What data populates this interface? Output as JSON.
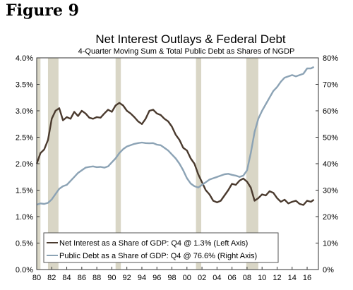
{
  "figure_label": "Figure 9",
  "chart_data": {
    "type": "line",
    "title": "Net Interest Outlays & Federal Debt",
    "subtitle": "4-Quarter Moving Sum & Total Public Debt as Shares of NGDP",
    "x_range": [
      1980,
      2017.5
    ],
    "x_tick_values": [
      1980,
      1982,
      1984,
      1986,
      1988,
      1990,
      1992,
      1994,
      1996,
      1998,
      2000,
      2002,
      2004,
      2006,
      2008,
      2010,
      2012,
      2014,
      2016
    ],
    "x_tick_labels": [
      "80",
      "82",
      "84",
      "86",
      "88",
      "90",
      "92",
      "94",
      "96",
      "98",
      "00",
      "02",
      "04",
      "06",
      "08",
      "10",
      "12",
      "14",
      "16"
    ],
    "y_left": {
      "range": [
        0,
        4
      ],
      "ticks": [
        0,
        0.5,
        1,
        1.5,
        2,
        2.5,
        3,
        3.5,
        4
      ],
      "tick_labels": [
        "0.0%",
        "0.5%",
        "1.0%",
        "1.5%",
        "2.0%",
        "2.5%",
        "3.0%",
        "3.5%",
        "4.0%"
      ]
    },
    "y_right": {
      "range": [
        0,
        80
      ],
      "ticks": [
        0,
        10,
        20,
        30,
        40,
        50,
        60,
        70,
        80
      ],
      "tick_labels": [
        "0%",
        "10%",
        "20%",
        "30%",
        "40%",
        "50%",
        "60%",
        "70%",
        "80%"
      ]
    },
    "recessions": [
      [
        1980.0,
        1980.5
      ],
      [
        1981.5,
        1982.9
      ],
      [
        1990.5,
        1991.2
      ],
      [
        2001.2,
        2001.9
      ],
      [
        2007.9,
        2009.5
      ]
    ],
    "grid": false,
    "legend_placement": "bottom-left",
    "series": [
      {
        "name": "Net Interest as a Share of GDP: Q4 @ 1.3% (Left Axis)",
        "axis": "left",
        "color": "#4a3a2e",
        "x": [
          1980.0,
          1980.5,
          1981.0,
          1981.5,
          1982.0,
          1982.5,
          1983.0,
          1983.5,
          1984.0,
          1984.5,
          1985.0,
          1985.5,
          1986.0,
          1986.5,
          1987.0,
          1987.5,
          1988.0,
          1988.5,
          1989.0,
          1989.5,
          1990.0,
          1990.5,
          1991.0,
          1991.5,
          1992.0,
          1992.5,
          1993.0,
          1993.5,
          1994.0,
          1994.5,
          1995.0,
          1995.5,
          1996.0,
          1996.5,
          1997.0,
          1997.5,
          1998.0,
          1998.5,
          1999.0,
          1999.5,
          2000.0,
          2000.5,
          2001.0,
          2001.5,
          2002.0,
          2002.5,
          2003.0,
          2003.5,
          2004.0,
          2004.5,
          2005.0,
          2005.5,
          2006.0,
          2006.5,
          2007.0,
          2007.5,
          2008.0,
          2008.5,
          2009.0,
          2009.5,
          2010.0,
          2010.5,
          2011.0,
          2011.5,
          2012.0,
          2012.5,
          2013.0,
          2013.5,
          2014.0,
          2014.5,
          2015.0,
          2015.5,
          2016.0,
          2016.5,
          2016.9
        ],
        "values": [
          2.0,
          2.2,
          2.27,
          2.45,
          2.85,
          3.0,
          3.05,
          2.82,
          2.88,
          2.85,
          2.98,
          2.9,
          3.0,
          2.95,
          2.87,
          2.85,
          2.88,
          2.87,
          2.95,
          3.02,
          2.98,
          3.1,
          3.15,
          3.1,
          3.0,
          2.95,
          2.88,
          2.8,
          2.75,
          2.85,
          3.0,
          3.02,
          2.95,
          2.92,
          2.85,
          2.8,
          2.7,
          2.55,
          2.45,
          2.3,
          2.25,
          2.1,
          2.0,
          1.8,
          1.65,
          1.5,
          1.42,
          1.3,
          1.27,
          1.3,
          1.4,
          1.5,
          1.62,
          1.6,
          1.68,
          1.72,
          1.66,
          1.55,
          1.3,
          1.35,
          1.42,
          1.4,
          1.48,
          1.45,
          1.35,
          1.28,
          1.32,
          1.25,
          1.28,
          1.3,
          1.24,
          1.22,
          1.3,
          1.28,
          1.32
        ]
      },
      {
        "name": "Public Debt as a Share of GDP: Q4 @ 76.6% (Right Axis)",
        "axis": "right",
        "color": "#8ca3b5",
        "x": [
          1980.0,
          1980.5,
          1981.0,
          1981.5,
          1982.0,
          1982.5,
          1983.0,
          1983.5,
          1984.0,
          1984.5,
          1985.0,
          1985.5,
          1986.0,
          1986.5,
          1987.0,
          1987.5,
          1988.0,
          1988.5,
          1989.0,
          1989.5,
          1990.0,
          1990.5,
          1991.0,
          1991.5,
          1992.0,
          1992.5,
          1993.0,
          1993.5,
          1994.0,
          1994.5,
          1995.0,
          1995.5,
          1996.0,
          1996.5,
          1997.0,
          1997.5,
          1998.0,
          1998.5,
          1999.0,
          1999.5,
          2000.0,
          2000.5,
          2001.0,
          2001.5,
          2002.0,
          2002.5,
          2003.0,
          2003.5,
          2004.0,
          2004.5,
          2005.0,
          2005.5,
          2006.0,
          2006.5,
          2007.0,
          2007.5,
          2008.0,
          2008.5,
          2009.0,
          2009.5,
          2010.0,
          2010.5,
          2011.0,
          2011.5,
          2012.0,
          2012.5,
          2013.0,
          2013.5,
          2014.0,
          2014.5,
          2015.0,
          2015.5,
          2016.0,
          2016.5,
          2016.9
        ],
        "values": [
          24.5,
          25.0,
          24.8,
          25.2,
          26.5,
          28.5,
          30.5,
          31.5,
          32.0,
          33.5,
          35.0,
          36.5,
          37.5,
          38.5,
          38.8,
          39.0,
          38.7,
          38.8,
          38.5,
          39.0,
          40.5,
          42.0,
          44.0,
          45.5,
          46.5,
          47.0,
          47.5,
          47.8,
          48.0,
          47.8,
          47.7,
          47.8,
          47.2,
          47.0,
          46.0,
          45.0,
          43.5,
          42.0,
          40.0,
          37.5,
          34.5,
          32.5,
          31.5,
          31.0,
          32.0,
          33.0,
          34.0,
          34.5,
          35.0,
          35.5,
          36.0,
          36.2,
          35.8,
          35.5,
          35.0,
          35.5,
          37.5,
          44.0,
          52.0,
          57.0,
          60.0,
          62.5,
          65.0,
          67.5,
          69.0,
          71.0,
          72.5,
          73.0,
          73.5,
          73.0,
          73.5,
          74.0,
          76.0,
          76.0,
          76.6
        ]
      }
    ]
  }
}
